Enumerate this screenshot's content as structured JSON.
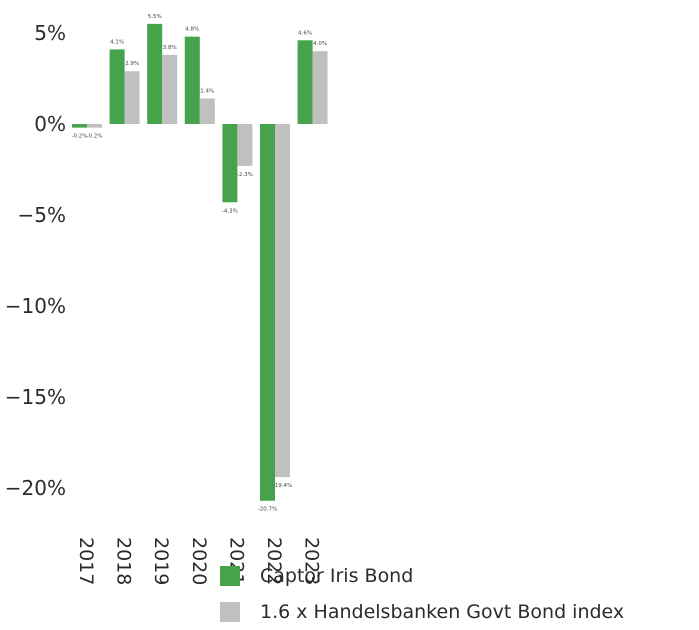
{
  "chart_data": {
    "type": "bar",
    "categories": [
      "2017",
      "2018",
      "2019",
      "2020",
      "2021",
      "2022",
      "2023"
    ],
    "series": [
      {
        "name": "Captor Iris Bond",
        "color": "#46a24b",
        "values": [
          -0.2,
          4.1,
          5.5,
          4.8,
          -4.3,
          -20.7,
          4.6
        ],
        "labels": [
          "-0.2%",
          "4.1%",
          "5.5%",
          "4.8%",
          "-4.3%",
          "-20.7%",
          "4.6%"
        ]
      },
      {
        "name": "1.6 x Handelsbanken Govt Bond index",
        "color": "#c0c0c0",
        "values": [
          -0.2,
          2.9,
          3.8,
          1.4,
          -2.3,
          -19.4,
          4.0
        ],
        "labels": [
          "-0.2%",
          "2.9%",
          "3.8%",
          "1.4%",
          "-2.3%",
          "-19.4%",
          "4.0%"
        ]
      }
    ],
    "yticks": [
      5,
      0,
      -5,
      -10,
      -15,
      -20
    ],
    "ytick_labels": [
      "5%",
      "0%",
      "−5%",
      "−10%",
      "−15%",
      "−20%"
    ],
    "ylim": [
      -21.5,
      6.5
    ],
    "legend_position": "bottom",
    "grid": false
  }
}
